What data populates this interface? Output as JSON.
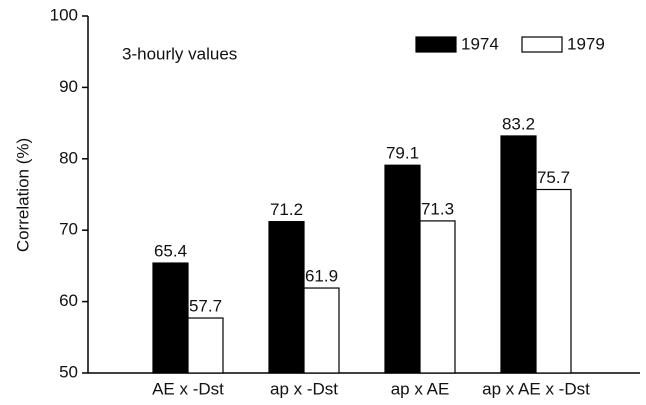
{
  "chart_data": {
    "type": "bar",
    "ylabel": "Correlation (%)",
    "annotation": "3-hourly values",
    "categories": [
      "AE x -Dst",
      "ap x -Dst",
      "ap x AE",
      "ap x AE x -Dst"
    ],
    "series": [
      {
        "name": "1974",
        "color": "#000000",
        "values": [
          65.4,
          71.2,
          79.1,
          83.2
        ]
      },
      {
        "name": "1979",
        "color": "#ffffff",
        "values": [
          57.7,
          61.9,
          71.3,
          75.7
        ]
      }
    ],
    "ylim": [
      50,
      100
    ],
    "yticks": [
      50,
      60,
      70,
      80,
      90,
      100
    ],
    "legend": "top-right",
    "grid": false
  }
}
